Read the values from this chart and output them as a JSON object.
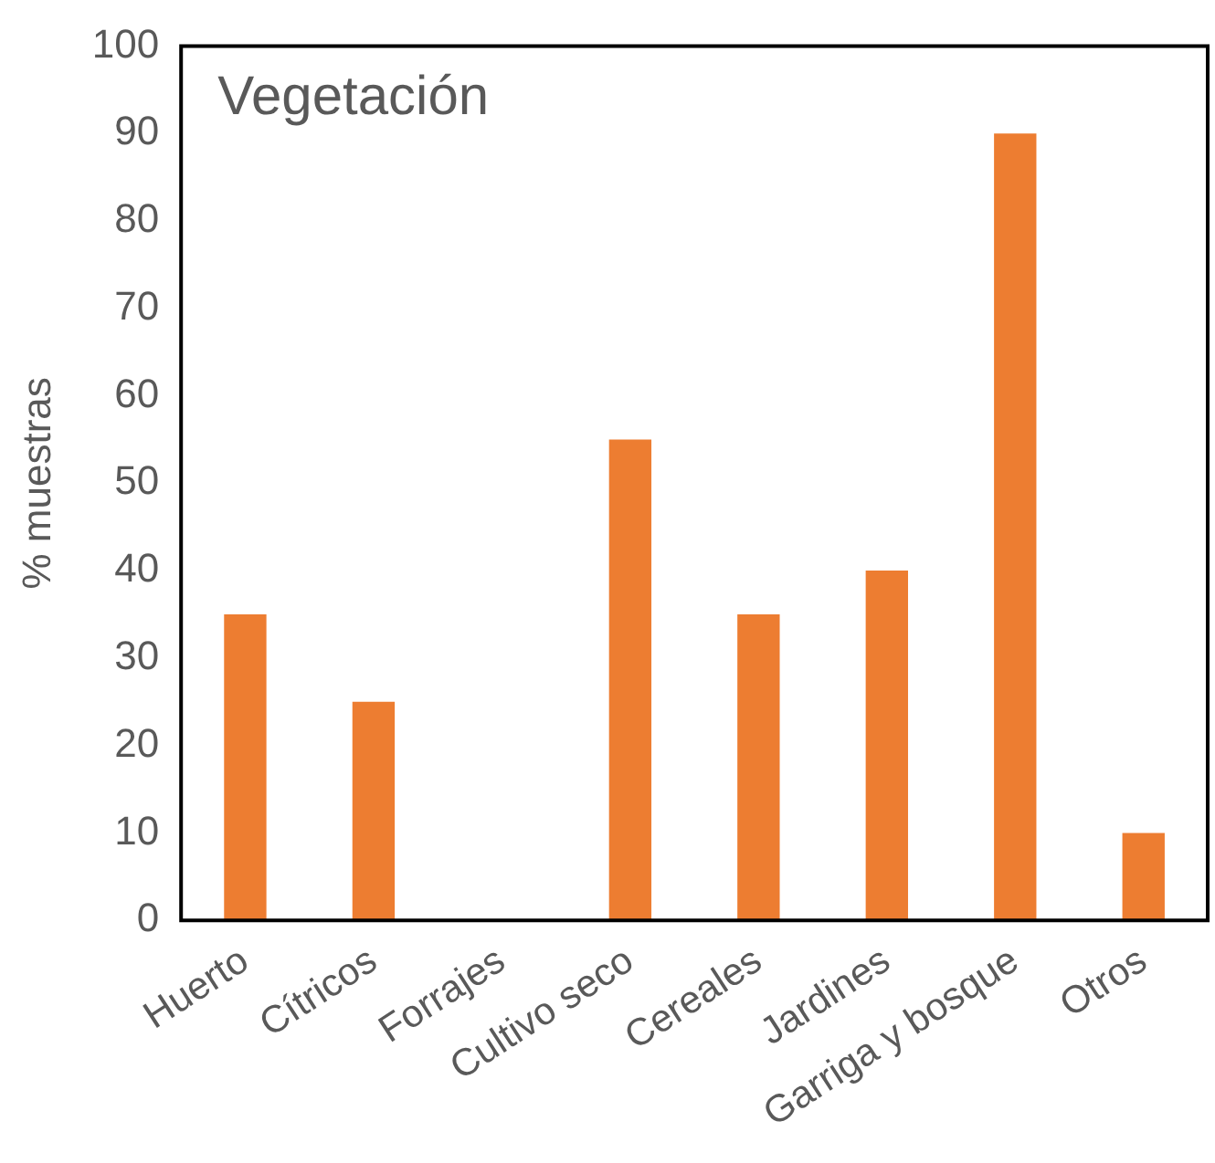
{
  "chart_data": {
    "type": "bar",
    "title": "Vegetación",
    "ylabel": "% muestras",
    "categories": [
      "Huerto",
      "Cítricos",
      "Forrajes",
      "Cultivo seco",
      "Cereales",
      "Jardines",
      "Garriga y bosque",
      "Otros"
    ],
    "values": [
      35,
      25,
      0,
      55,
      35,
      40,
      90,
      10
    ],
    "color": "#ed7d31",
    "ylim": [
      0,
      100
    ],
    "yticks": [
      0,
      10,
      20,
      30,
      40,
      50,
      60,
      70,
      80,
      90,
      100
    ],
    "grid": false,
    "legend": false
  }
}
